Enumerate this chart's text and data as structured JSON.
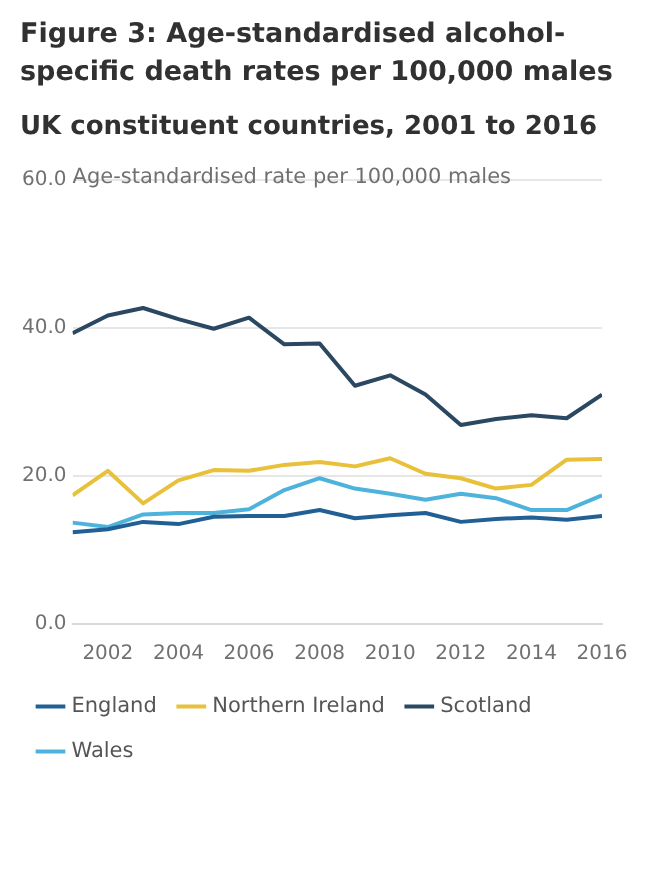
{
  "chart_data": {
    "type": "line",
    "title": "Figure 3: Age-standardised alcohol-specific death rates per 100,000 males",
    "subtitle": "UK constituent countries, 2001 to 2016",
    "ylabel": "Age-standardised rate per 100,000 males",
    "x": [
      2001,
      2002,
      2003,
      2004,
      2005,
      2006,
      2007,
      2008,
      2009,
      2010,
      2011,
      2012,
      2013,
      2014,
      2015,
      2016
    ],
    "series": [
      {
        "name": "England",
        "color": "#206095",
        "values": [
          12.4,
          12.8,
          13.8,
          13.5,
          14.5,
          14.6,
          14.6,
          15.4,
          14.3,
          14.7,
          15.0,
          13.8,
          14.2,
          14.4,
          14.1,
          14.6
        ]
      },
      {
        "name": "Northern Ireland",
        "color": "#e8c03a",
        "values": [
          17.4,
          20.7,
          16.3,
          19.4,
          20.8,
          20.7,
          21.5,
          21.9,
          21.3,
          22.4,
          20.3,
          19.7,
          18.3,
          18.8,
          22.2,
          22.3
        ]
      },
      {
        "name": "Scotland",
        "color": "#2a4862",
        "values": [
          39.3,
          41.7,
          42.7,
          41.2,
          39.9,
          41.4,
          37.8,
          37.9,
          32.2,
          33.6,
          31.0,
          26.9,
          27.7,
          28.2,
          27.8,
          31.0
        ]
      },
      {
        "name": "Wales",
        "color": "#4db3dd",
        "values": [
          13.7,
          13.1,
          14.8,
          15.0,
          15.0,
          15.5,
          18.1,
          19.7,
          18.3,
          17.6,
          16.8,
          17.6,
          17.0,
          15.4,
          15.4,
          17.4
        ]
      }
    ],
    "xlim": [
      2001,
      2016
    ],
    "xticks": [
      2002,
      2004,
      2006,
      2008,
      2010,
      2012,
      2014,
      2016
    ],
    "ylim": [
      0,
      60
    ],
    "yticks": [
      {
        "value": 0,
        "label": "0.0"
      },
      {
        "value": 20,
        "label": "20.0"
      },
      {
        "value": 40,
        "label": "40.0"
      },
      {
        "value": 60,
        "label": "60.0"
      }
    ],
    "grid": "y",
    "legend": "bottom",
    "marker": "none",
    "line_style": "solid"
  }
}
